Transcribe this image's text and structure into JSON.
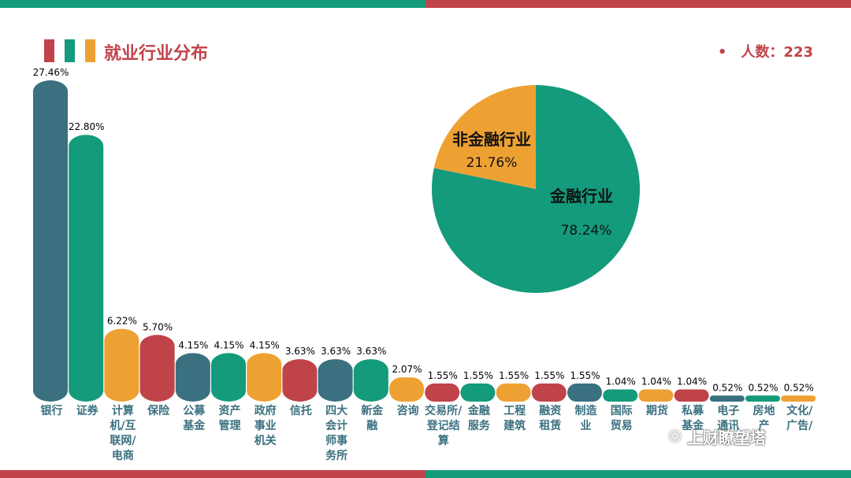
{
  "header": {
    "title": "就业行业分布",
    "people_label": "人数：223",
    "bullet": "•"
  },
  "colors": {
    "teal": "#139b7b",
    "orange": "#eea133",
    "red": "#c0434a",
    "slate": "#3a7080",
    "title_text": "#c0434a"
  },
  "watermark": "上财瞭望塔",
  "chart_data": [
    {
      "type": "bar",
      "categories": [
        "银行",
        "证券",
        "计算机/互联网/电商",
        "保险",
        "公募基金",
        "资产管理",
        "政府事业机关",
        "信托",
        "四大会计师事务所",
        "新金融",
        "咨询",
        "交易所/登记结算",
        "金融服务",
        "工程建筑",
        "融资租赁",
        "制造业",
        "国际贸易",
        "期货",
        "私募基金",
        "电子通讯",
        "房地产",
        "文化/广告/"
      ],
      "category_label_lines": [
        [
          "银行"
        ],
        [
          "证券"
        ],
        [
          "计算",
          "机/互",
          "联网/",
          "电商"
        ],
        [
          "保险"
        ],
        [
          "公募",
          "基金"
        ],
        [
          "资产",
          "管理"
        ],
        [
          "政府",
          "事业",
          "机关"
        ],
        [
          "信托"
        ],
        [
          "四大",
          "会计",
          "师事",
          "务所"
        ],
        [
          "新金",
          "融"
        ],
        [
          "咨询"
        ],
        [
          "交易所/",
          "登记结",
          "算"
        ],
        [
          "金融",
          "服务"
        ],
        [
          "工程",
          "建筑"
        ],
        [
          "融资",
          "租赁"
        ],
        [
          "制造",
          "业"
        ],
        [
          "国际",
          "贸易"
        ],
        [
          "期货"
        ],
        [
          "私募",
          "基金"
        ],
        [
          "电子",
          "通讯"
        ],
        [
          "房地",
          "产"
        ],
        [
          "文化/",
          "广告/"
        ]
      ],
      "values": [
        27.46,
        22.8,
        6.22,
        5.7,
        4.15,
        4.15,
        4.15,
        3.63,
        3.63,
        3.63,
        2.07,
        1.55,
        1.55,
        1.55,
        1.55,
        1.55,
        1.04,
        1.04,
        1.04,
        0.52,
        0.52,
        0.52
      ],
      "value_labels": [
        "27.46%",
        "22.80%",
        "6.22%",
        "5.70%",
        "4.15%",
        "4.15%",
        "4.15%",
        "3.63%",
        "3.63%",
        "3.63%",
        "2.07%",
        "1.55%",
        "1.55%",
        "1.55%",
        "1.55%",
        "1.55%",
        "1.04%",
        "1.04%",
        "1.04%",
        "0.52%",
        "0.52%",
        "0.52%"
      ],
      "bar_colors": [
        "slate",
        "teal",
        "orange",
        "red",
        "slate",
        "teal",
        "orange",
        "red",
        "slate",
        "teal",
        "orange",
        "red",
        "teal",
        "orange",
        "red",
        "slate",
        "teal",
        "orange",
        "red",
        "slate",
        "teal",
        "orange"
      ],
      "ylim": [
        0,
        27.46
      ]
    },
    {
      "type": "pie",
      "slices": [
        {
          "name": "金融行业",
          "value": 78.24,
          "label": "78.24%",
          "color": "teal"
        },
        {
          "name": "非金融行业",
          "value": 21.76,
          "label": "21.76%",
          "color": "orange"
        }
      ]
    }
  ]
}
